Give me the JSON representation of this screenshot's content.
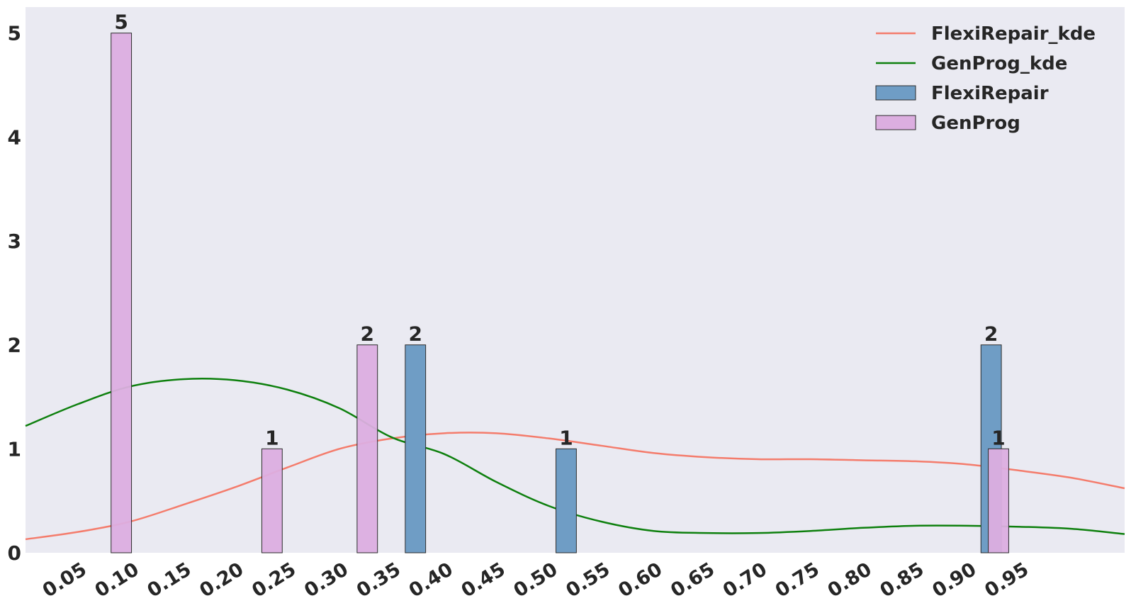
{
  "chart_data": {
    "type": "bar",
    "title": "",
    "xlabel": "",
    "ylabel": "",
    "xlim": [
      0.0,
      1.05
    ],
    "ylim": [
      0,
      5.25
    ],
    "grid": false,
    "background": "#eaeaf2",
    "legend_position": "top-right",
    "x_ticks": [
      "0.05",
      "0.10",
      "0.15",
      "0.20",
      "0.25",
      "0.30",
      "0.35",
      "0.40",
      "0.45",
      "0.50",
      "0.55",
      "0.60",
      "0.65",
      "0.70",
      "0.75",
      "0.80",
      "0.85",
      "0.90",
      "0.95"
    ],
    "y_ticks": [
      "0",
      "1",
      "2",
      "3",
      "4",
      "5"
    ],
    "bar_series": [
      {
        "name": "FlexiRepair",
        "color": "#6f9dc5",
        "bars": [
          {
            "x": 0.3725,
            "value": 2,
            "label": "2"
          },
          {
            "x": 0.5165,
            "value": 1,
            "label": "1"
          },
          {
            "x": 0.9225,
            "value": 2,
            "label": "2"
          }
        ]
      },
      {
        "name": "GenProg",
        "color": "#dcaee0",
        "bars": [
          {
            "x": 0.0915,
            "value": 5,
            "label": "5"
          },
          {
            "x": 0.2355,
            "value": 1,
            "label": "1"
          },
          {
            "x": 0.3265,
            "value": 2,
            "label": "2"
          },
          {
            "x": 0.9295,
            "value": 1,
            "label": "1"
          }
        ]
      }
    ],
    "line_series": [
      {
        "name": "FlexiRepair_kde",
        "color": "#f47c6c",
        "x": [
          0.0,
          0.05,
          0.1,
          0.15,
          0.2,
          0.25,
          0.3,
          0.35,
          0.4,
          0.45,
          0.5,
          0.55,
          0.6,
          0.65,
          0.7,
          0.75,
          0.8,
          0.85,
          0.9,
          0.95,
          1.0,
          1.05
        ],
        "y": [
          0.13,
          0.2,
          0.3,
          0.46,
          0.63,
          0.82,
          1.0,
          1.1,
          1.15,
          1.15,
          1.1,
          1.03,
          0.96,
          0.92,
          0.9,
          0.9,
          0.89,
          0.88,
          0.85,
          0.79,
          0.72,
          0.62
        ]
      },
      {
        "name": "GenProg_kde",
        "color": "#0e800e",
        "x": [
          0.0,
          0.05,
          0.1,
          0.15,
          0.2,
          0.25,
          0.3,
          0.35,
          0.4,
          0.45,
          0.5,
          0.55,
          0.6,
          0.65,
          0.7,
          0.75,
          0.8,
          0.85,
          0.9,
          0.95,
          1.0,
          1.05
        ],
        "y": [
          1.22,
          1.43,
          1.6,
          1.67,
          1.66,
          1.57,
          1.39,
          1.11,
          0.95,
          0.68,
          0.45,
          0.3,
          0.21,
          0.19,
          0.19,
          0.21,
          0.24,
          0.26,
          0.26,
          0.25,
          0.23,
          0.18
        ]
      }
    ],
    "legend": [
      {
        "label": "FlexiRepair_kde",
        "kind": "line",
        "color": "#f47c6c"
      },
      {
        "label": "GenProg_kde",
        "kind": "line",
        "color": "#0e800e"
      },
      {
        "label": "FlexiRepair",
        "kind": "patch",
        "color": "#6f9dc5"
      },
      {
        "label": "GenProg",
        "kind": "patch",
        "color": "#dcaee0"
      }
    ]
  }
}
